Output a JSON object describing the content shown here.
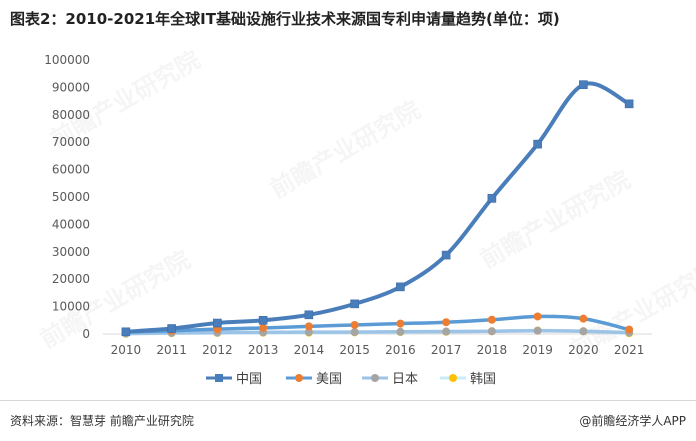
{
  "title": "图表2：2010-2021年全球IT基础设施行业技术来源国专利申请量趋势(单位：项)",
  "source": "资料来源：智慧芽 前瞻产业研究院",
  "brand": "@前瞻经济学人APP",
  "watermark": "前瞻产业研究院",
  "chart_data": {
    "type": "line",
    "title": "图表2：2010-2021年全球IT基础设施行业技术来源国专利申请量趋势(单位：项)",
    "xlabel": "",
    "ylabel": "",
    "x": [
      "2010",
      "2011",
      "2012",
      "2013",
      "2014",
      "2015",
      "2016",
      "2017",
      "2018",
      "2019",
      "2020",
      "2021"
    ],
    "ylim": [
      0,
      100000
    ],
    "yticks": [
      0,
      10000,
      20000,
      30000,
      40000,
      50000,
      60000,
      70000,
      80000,
      90000,
      100000
    ],
    "grid": false,
    "legend": "bottom",
    "series": [
      {
        "name": "中国",
        "color": "#4a7ebb",
        "marker": "square",
        "values": [
          800,
          2000,
          4000,
          5000,
          7000,
          11000,
          17200,
          28800,
          49500,
          69300,
          91000,
          84000
        ]
      },
      {
        "name": "美国",
        "color": "#ed7d31",
        "marker": "circle",
        "values": [
          700,
          1200,
          1800,
          2200,
          2800,
          3300,
          3800,
          4300,
          5200,
          6400,
          5600,
          1600
        ]
      },
      {
        "name": "日本",
        "color": "#a5a5a5",
        "marker": "circle",
        "values": [
          200,
          400,
          500,
          600,
          700,
          700,
          800,
          900,
          1000,
          1200,
          1000,
          500
        ]
      },
      {
        "name": "韩国",
        "color": "#ffc000",
        "marker": "circle",
        "values": [
          100,
          300,
          400,
          500,
          500,
          600,
          700,
          800,
          1000,
          1300,
          1000,
          300
        ]
      }
    ],
    "line_colors": {
      "中国": "#4a7ebb",
      "美国": "#5b9bd5",
      "日本": "#9dc3e6",
      "韩国": "#c8ecfa"
    }
  }
}
